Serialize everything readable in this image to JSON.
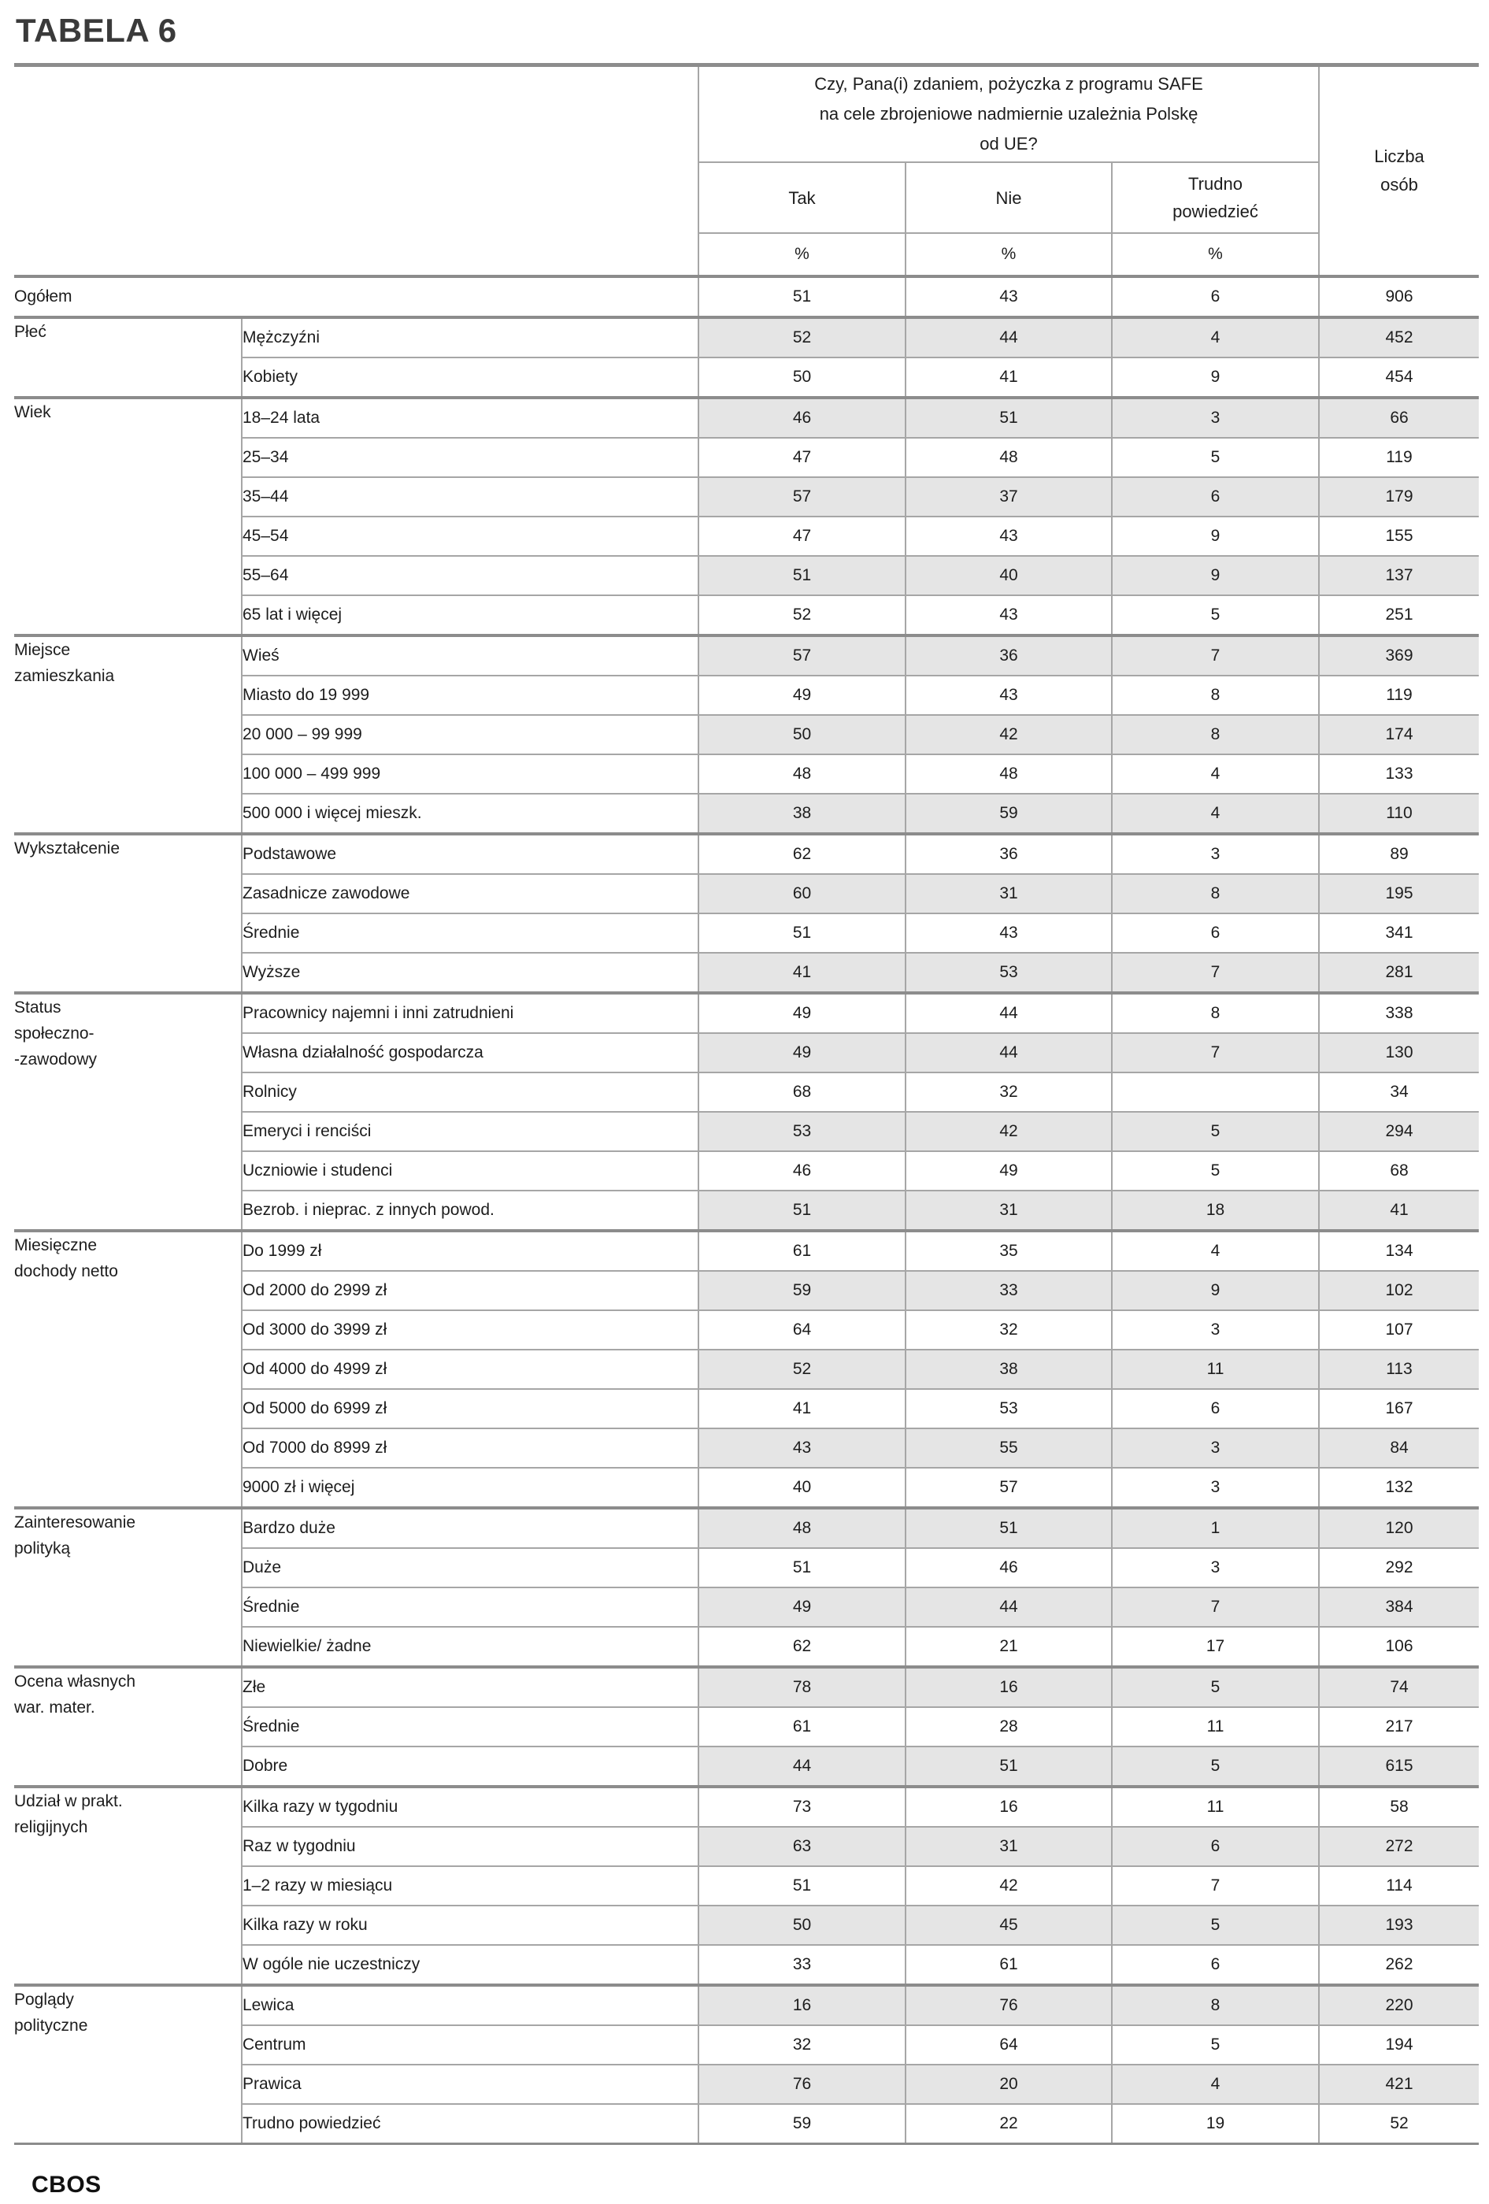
{
  "page": {
    "title": "TABELA 6",
    "footer": "CBOS"
  },
  "table": {
    "question": "Czy, Pana(i) zdaniem, pożyczka z programu SAFE\nna cele zbrojeniowe nadmiernie uzależnia Polskę\nod UE?",
    "answer_columns": [
      "Tak",
      "Nie",
      "Trudno\npowiedzieć"
    ],
    "percent_symbol": "%",
    "count_column": "Liczba\nosób",
    "colors": {
      "row_shade": "#e5e5e5",
      "thin_line": "#a6a6a6",
      "thick_line": "#8c8c8c",
      "text": "#1d1d1d"
    },
    "overall": {
      "label": "Ogółem",
      "values": [
        "51",
        "43",
        "6"
      ],
      "count": "906"
    },
    "groups": [
      {
        "label": "Płeć",
        "rows": [
          {
            "label": "Mężczyźni",
            "values": [
              "52",
              "44",
              "4"
            ],
            "count": "452"
          },
          {
            "label": "Kobiety",
            "values": [
              "50",
              "41",
              "9"
            ],
            "count": "454"
          }
        ]
      },
      {
        "label": "Wiek",
        "rows": [
          {
            "label": "18–24 lata",
            "values": [
              "46",
              "51",
              "3"
            ],
            "count": "66"
          },
          {
            "label": "25–34",
            "values": [
              "47",
              "48",
              "5"
            ],
            "count": "119"
          },
          {
            "label": "35–44",
            "values": [
              "57",
              "37",
              "6"
            ],
            "count": "179"
          },
          {
            "label": "45–54",
            "values": [
              "47",
              "43",
              "9"
            ],
            "count": "155"
          },
          {
            "label": "55–64",
            "values": [
              "51",
              "40",
              "9"
            ],
            "count": "137"
          },
          {
            "label": "65 lat i więcej",
            "values": [
              "52",
              "43",
              "5"
            ],
            "count": "251"
          }
        ]
      },
      {
        "label": "Miejsce\nzamieszkania",
        "rows": [
          {
            "label": "Wieś",
            "values": [
              "57",
              "36",
              "7"
            ],
            "count": "369"
          },
          {
            "label": "Miasto do 19 999",
            "values": [
              "49",
              "43",
              "8"
            ],
            "count": "119"
          },
          {
            "label": "20 000 – 99 999",
            "values": [
              "50",
              "42",
              "8"
            ],
            "count": "174"
          },
          {
            "label": "100 000 – 499 999",
            "values": [
              "48",
              "48",
              "4"
            ],
            "count": "133"
          },
          {
            "label": "500 000 i więcej mieszk.",
            "values": [
              "38",
              "59",
              "4"
            ],
            "count": "110"
          }
        ]
      },
      {
        "label": "Wykształcenie",
        "rows": [
          {
            "label": "Podstawowe",
            "values": [
              "62",
              "36",
              "3"
            ],
            "count": "89"
          },
          {
            "label": "Zasadnicze zawodowe",
            "values": [
              "60",
              "31",
              "8"
            ],
            "count": "195"
          },
          {
            "label": "Średnie",
            "values": [
              "51",
              "43",
              "6"
            ],
            "count": "341"
          },
          {
            "label": "Wyższe",
            "values": [
              "41",
              "53",
              "7"
            ],
            "count": "281"
          }
        ]
      },
      {
        "label": "Status\nspołeczno-\n-zawodowy",
        "rows": [
          {
            "label": "Pracownicy najemni i inni zatrudnieni",
            "values": [
              "49",
              "44",
              "8"
            ],
            "count": "338"
          },
          {
            "label": "Własna działalność gospodarcza",
            "values": [
              "49",
              "44",
              "7"
            ],
            "count": "130"
          },
          {
            "label": "Rolnicy",
            "values": [
              "68",
              "32",
              ""
            ],
            "count": "34"
          },
          {
            "label": "Emeryci i renciści",
            "values": [
              "53",
              "42",
              "5"
            ],
            "count": "294"
          },
          {
            "label": "Uczniowie i studenci",
            "values": [
              "46",
              "49",
              "5"
            ],
            "count": "68"
          },
          {
            "label": "Bezrob. i nieprac. z innych powod.",
            "values": [
              "51",
              "31",
              "18"
            ],
            "count": "41"
          }
        ]
      },
      {
        "label": "Miesięczne\ndochody netto",
        "rows": [
          {
            "label": "Do 1999 zł",
            "values": [
              "61",
              "35",
              "4"
            ],
            "count": "134"
          },
          {
            "label": "Od 2000 do 2999 zł",
            "values": [
              "59",
              "33",
              "9"
            ],
            "count": "102"
          },
          {
            "label": "Od 3000 do 3999 zł",
            "values": [
              "64",
              "32",
              "3"
            ],
            "count": "107"
          },
          {
            "label": "Od 4000 do 4999 zł",
            "values": [
              "52",
              "38",
              "11"
            ],
            "count": "113"
          },
          {
            "label": "Od 5000 do 6999 zł",
            "values": [
              "41",
              "53",
              "6"
            ],
            "count": "167"
          },
          {
            "label": "Od 7000 do 8999 zł",
            "values": [
              "43",
              "55",
              "3"
            ],
            "count": "84"
          },
          {
            "label": "9000 zł i więcej",
            "values": [
              "40",
              "57",
              "3"
            ],
            "count": "132"
          }
        ]
      },
      {
        "label": "Zainteresowanie\npolityką",
        "rows": [
          {
            "label": "Bardzo duże",
            "values": [
              "48",
              "51",
              "1"
            ],
            "count": "120"
          },
          {
            "label": "Duże",
            "values": [
              "51",
              "46",
              "3"
            ],
            "count": "292"
          },
          {
            "label": "Średnie",
            "values": [
              "49",
              "44",
              "7"
            ],
            "count": "384"
          },
          {
            "label": "Niewielkie/ żadne",
            "values": [
              "62",
              "21",
              "17"
            ],
            "count": "106"
          }
        ]
      },
      {
        "label": "Ocena własnych\nwar. mater.",
        "rows": [
          {
            "label": "Złe",
            "values": [
              "78",
              "16",
              "5"
            ],
            "count": "74"
          },
          {
            "label": "Średnie",
            "values": [
              "61",
              "28",
              "11"
            ],
            "count": "217"
          },
          {
            "label": "Dobre",
            "values": [
              "44",
              "51",
              "5"
            ],
            "count": "615"
          }
        ]
      },
      {
        "label": "Udział w prakt.\nreligijnych",
        "rows": [
          {
            "label": "Kilka razy w tygodniu",
            "values": [
              "73",
              "16",
              "11"
            ],
            "count": "58"
          },
          {
            "label": "Raz w tygodniu",
            "values": [
              "63",
              "31",
              "6"
            ],
            "count": "272"
          },
          {
            "label": "1–2 razy w miesiącu",
            "values": [
              "51",
              "42",
              "7"
            ],
            "count": "114"
          },
          {
            "label": "Kilka razy w roku",
            "values": [
              "50",
              "45",
              "5"
            ],
            "count": "193"
          },
          {
            "label": "W ogóle nie uczestniczy",
            "values": [
              "33",
              "61",
              "6"
            ],
            "count": "262"
          }
        ]
      },
      {
        "label": "Poglądy\npolityczne",
        "rows": [
          {
            "label": "Lewica",
            "values": [
              "16",
              "76",
              "8"
            ],
            "count": "220"
          },
          {
            "label": "Centrum",
            "values": [
              "32",
              "64",
              "5"
            ],
            "count": "194"
          },
          {
            "label": "Prawica",
            "values": [
              "76",
              "20",
              "4"
            ],
            "count": "421"
          },
          {
            "label": "Trudno powiedzieć",
            "values": [
              "59",
              "22",
              "19"
            ],
            "count": "52"
          }
        ]
      }
    ]
  }
}
